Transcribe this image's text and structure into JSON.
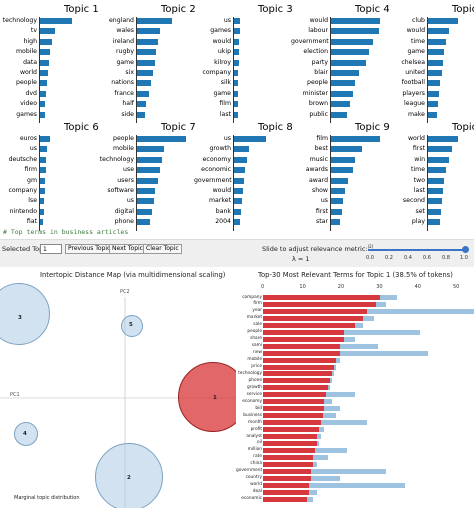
{
  "topics": [
    {
      "title": "Topic 1",
      "words": [
        "technology",
        "tv",
        "high",
        "mobile",
        "data",
        "world",
        "people",
        "dvd",
        "video",
        "games"
      ],
      "weights": [
        0.6,
        0.28,
        0.22,
        0.18,
        0.16,
        0.14,
        0.13,
        0.12,
        0.1,
        0.1
      ]
    },
    {
      "title": "Topic 2",
      "words": [
        "england",
        "wales",
        "ireland",
        "rugby",
        "game",
        "six",
        "nations",
        "france",
        "half",
        "side"
      ],
      "weights": [
        0.65,
        0.42,
        0.38,
        0.35,
        0.33,
        0.3,
        0.25,
        0.22,
        0.17,
        0.14
      ]
    },
    {
      "title": "Topic 3",
      "words": [
        "us",
        "games",
        "would",
        "ukip",
        "kilroy",
        "company",
        "silk",
        "game",
        "film",
        "last"
      ],
      "weights": [
        0.12,
        0.11,
        0.1,
        0.09,
        0.09,
        0.08,
        0.08,
        0.08,
        0.07,
        0.07
      ]
    },
    {
      "title": "Topic 4",
      "words": [
        "would",
        "labour",
        "government",
        "election",
        "party",
        "blair",
        "people",
        "minister",
        "brown",
        "public"
      ],
      "weights": [
        0.9,
        0.88,
        0.78,
        0.7,
        0.64,
        0.52,
        0.45,
        0.4,
        0.35,
        0.29
      ]
    },
    {
      "title": "Topic 5",
      "words": [
        "club",
        "would",
        "time",
        "game",
        "chelsea",
        "united",
        "football",
        "players",
        "league",
        "make"
      ],
      "weights": [
        0.55,
        0.38,
        0.33,
        0.3,
        0.27,
        0.25,
        0.23,
        0.2,
        0.18,
        0.16
      ]
    },
    {
      "title": "Topic 6",
      "words": [
        "euros",
        "us",
        "deutsche",
        "firm",
        "gm",
        "company",
        "lse",
        "nintendo",
        "fiat"
      ],
      "weights": [
        0.18,
        0.13,
        0.12,
        0.11,
        0.1,
        0.09,
        0.08,
        0.07,
        0.06
      ]
    },
    {
      "title": "Topic 7",
      "words": [
        "people",
        "mobile",
        "technology",
        "use",
        "users",
        "software",
        "us",
        "digital",
        "phone"
      ],
      "weights": [
        0.9,
        0.5,
        0.46,
        0.42,
        0.38,
        0.34,
        0.31,
        0.28,
        0.24
      ]
    },
    {
      "title": "Topic 8",
      "words": [
        "us",
        "growth",
        "economy",
        "economic",
        "government",
        "would",
        "market",
        "bank",
        "2004"
      ],
      "weights": [
        0.6,
        0.27,
        0.24,
        0.21,
        0.19,
        0.17,
        0.15,
        0.13,
        0.11
      ]
    },
    {
      "title": "Topic 9",
      "words": [
        "film",
        "best",
        "music",
        "awards",
        "award",
        "show",
        "us",
        "first",
        "star"
      ],
      "weights": [
        0.9,
        0.58,
        0.44,
        0.4,
        0.32,
        0.26,
        0.22,
        0.2,
        0.17
      ]
    },
    {
      "title": "Topic 10",
      "words": [
        "world",
        "first",
        "win",
        "time",
        "two",
        "last",
        "second",
        "set",
        "play"
      ],
      "weights": [
        0.55,
        0.45,
        0.38,
        0.33,
        0.3,
        0.28,
        0.26,
        0.24,
        0.22
      ]
    }
  ],
  "comment": "# Top terms in business articles",
  "controls": {
    "selected_topic_label": "Selected Topic:",
    "selected_topic_value": "1",
    "prev_button": "Previous Topic",
    "next_button": "Next Topic",
    "clear_button": "Clear Topic",
    "slider_label": "Slide to adjust relevance metric:",
    "slider_footnote": "(2)",
    "lambda_label": "λ = 1",
    "slider_value": 1.0,
    "slider_ticks": [
      "0.0",
      "0.2",
      "0.4",
      "0.6",
      "0.8",
      "1.0"
    ]
  },
  "intertopic_map": {
    "title": "Intertopic Distance Map (via multidimensional scaling)",
    "pc1_label": "PC1",
    "pc2_label": "PC2",
    "marginal_label": "Marginal topic distribution",
    "selected_color": "#d6383d",
    "circle_color": "#adcbe3",
    "circles": [
      {
        "label": "1",
        "selected": true
      },
      {
        "label": "2",
        "selected": false
      },
      {
        "label": "3",
        "selected": false
      },
      {
        "label": "4",
        "selected": false
      },
      {
        "label": "5",
        "selected": false
      }
    ]
  },
  "relevant_terms": {
    "title": "Top-30 Most Relevant Terms for Topic 1 (38.5% of tokens)",
    "x_ticks": [
      "0",
      "10",
      "20",
      "30",
      "40",
      "50"
    ],
    "overall_color": "#9ec3e0",
    "estimated_color": "#d6383d",
    "terms": [
      {
        "term": "company",
        "overall": 35,
        "estimated": 30.5
      },
      {
        "term": "firm",
        "overall": 32,
        "estimated": 29.5
      },
      {
        "term": "year",
        "overall": 59,
        "estimated": 27
      },
      {
        "term": "market",
        "overall": 29,
        "estimated": 26
      },
      {
        "term": "sale",
        "overall": 26,
        "estimated": 24
      },
      {
        "term": "people",
        "overall": 41,
        "estimated": 21
      },
      {
        "term": "share",
        "overall": 24,
        "estimated": 21
      },
      {
        "term": "sami",
        "overall": 30,
        "estimated": 20
      },
      {
        "term": "new",
        "overall": 43,
        "estimated": 20
      },
      {
        "term": "mobile",
        "overall": 20,
        "estimated": 19
      },
      {
        "term": "price",
        "overall": 19,
        "estimated": 18.5
      },
      {
        "term": "technology",
        "overall": 18.5,
        "estimated": 18
      },
      {
        "term": "phone",
        "overall": 18,
        "estimated": 17.5
      },
      {
        "term": "growth",
        "overall": 17.5,
        "estimated": 17
      },
      {
        "term": "service",
        "overall": 24,
        "estimated": 16.5
      },
      {
        "term": "economy",
        "overall": 18,
        "estimated": 16
      },
      {
        "term": "bid",
        "overall": 20,
        "estimated": 16
      },
      {
        "term": "business",
        "overall": 19,
        "estimated": 15.5
      },
      {
        "term": "month",
        "overall": 27,
        "estimated": 15
      },
      {
        "term": "profit",
        "overall": 16,
        "estimated": 14.5
      },
      {
        "term": "analyst",
        "overall": 15,
        "estimated": 14
      },
      {
        "term": "oil",
        "overall": 14.5,
        "estimated": 14
      },
      {
        "term": "million",
        "overall": 22,
        "estimated": 13.5
      },
      {
        "term": "rate",
        "overall": 17,
        "estimated": 13
      },
      {
        "term": "china",
        "overall": 14,
        "estimated": 13
      },
      {
        "term": "government",
        "overall": 32,
        "estimated": 12.5
      },
      {
        "term": "country",
        "overall": 20,
        "estimated": 12.5
      },
      {
        "term": "world",
        "overall": 37,
        "estimated": 12
      },
      {
        "term": "deal",
        "overall": 14,
        "estimated": 12
      },
      {
        "term": "economic",
        "overall": 13,
        "estimated": 11.5
      }
    ]
  }
}
